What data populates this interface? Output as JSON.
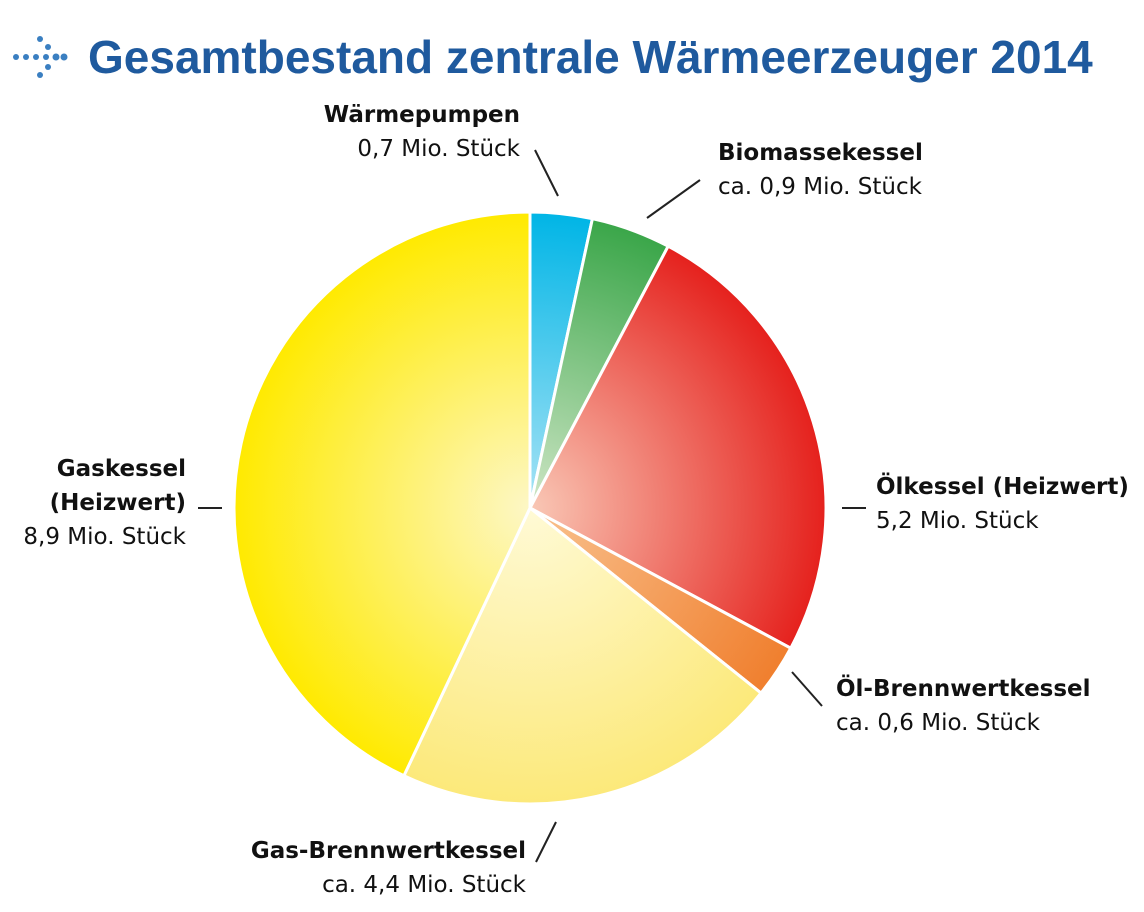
{
  "header": {
    "title": "Gesamtbestand zentrale Wärmeerzeuger 2014",
    "icon": "dotted-arrow-icon"
  },
  "chart_data": {
    "type": "pie",
    "title": "Gesamtbestand zentrale Wärmeerzeuger 2014",
    "unit": "Mio. Stück",
    "slices": [
      {
        "name_lines": [
          "Wärmepumpen"
        ],
        "value": 0.7,
        "value_text": "0,7 Mio. Stück",
        "color": "#00b5e6",
        "color_light": "#a9e3f5"
      },
      {
        "name_lines": [
          "Biomassekessel"
        ],
        "value": 0.9,
        "value_text": "ca. 0,9 Mio. Stück",
        "color": "#3aa649",
        "color_light": "#cfe6c6"
      },
      {
        "name_lines": [
          "Ölkessel (Heizwert)"
        ],
        "value": 5.2,
        "value_text": "5,2 Mio. Stück",
        "color": "#e5211d",
        "color_light": "#f9c8b6"
      },
      {
        "name_lines": [
          "Öl-Brennwertkessel"
        ],
        "value": 0.6,
        "value_text": "ca. 0,6 Mio. Stück",
        "color": "#f07f2e",
        "color_light": "#f9c28f"
      },
      {
        "name_lines": [
          "Gas-Brennwertkessel"
        ],
        "value": 4.4,
        "value_text": "ca. 4,4 Mio. Stück",
        "color": "#fce97a",
        "color_light": "#fffad6"
      },
      {
        "name_lines": [
          "Gaskessel",
          "(Heizwert)"
        ],
        "value": 8.9,
        "value_text": "8,9 Mio. Stück",
        "color": "#ffea00",
        "color_light": "#fdf7c6"
      }
    ],
    "start_angle_deg": 0,
    "direction": "clockwise"
  }
}
